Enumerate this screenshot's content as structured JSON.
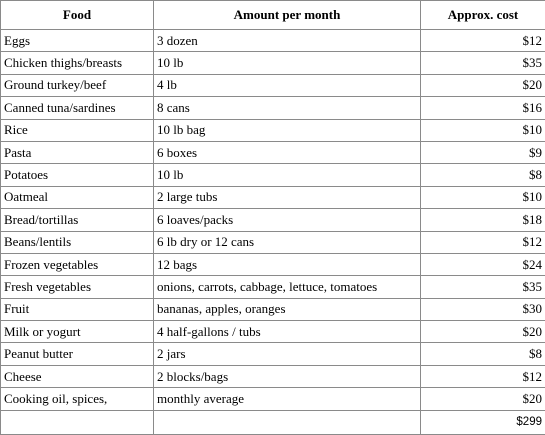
{
  "table": {
    "header": [
      "Food",
      "Amount per month",
      "Approx. cost"
    ],
    "rows": [
      [
        "Eggs",
        "3 dozen",
        "$12"
      ],
      [
        "Chicken thighs/breasts",
        "10 lb",
        "$35"
      ],
      [
        "Ground turkey/beef",
        "4 lb",
        "$20"
      ],
      [
        "Canned tuna/sardines",
        "8 cans",
        "$16"
      ],
      [
        "Rice",
        "10 lb bag",
        "$10"
      ],
      [
        "Pasta",
        "6 boxes",
        "$9"
      ],
      [
        "Potatoes",
        "10 lb",
        "$8"
      ],
      [
        "Oatmeal",
        "2 large tubs",
        "$10"
      ],
      [
        "Bread/tortillas",
        "6 loaves/packs",
        "$18"
      ],
      [
        "Beans/lentils",
        "6 lb dry or 12 cans",
        "$12"
      ],
      [
        "Frozen vegetables",
        "12 bags",
        "$24"
      ],
      [
        "Fresh vegetables",
        "onions, carrots, cabbage, lettuce, tomatoes",
        "$35"
      ],
      [
        "Fruit",
        "bananas, apples, oranges",
        "$30"
      ],
      [
        "Milk or yogurt",
        "4 half-gallons / tubs",
        "$20"
      ],
      [
        "Peanut butter",
        "2 jars",
        "$8"
      ],
      [
        "Cheese",
        "2 blocks/bags",
        "$12"
      ],
      [
        "Cooking oil, spices,",
        "monthly average",
        "$20"
      ]
    ],
    "total": "$299"
  }
}
